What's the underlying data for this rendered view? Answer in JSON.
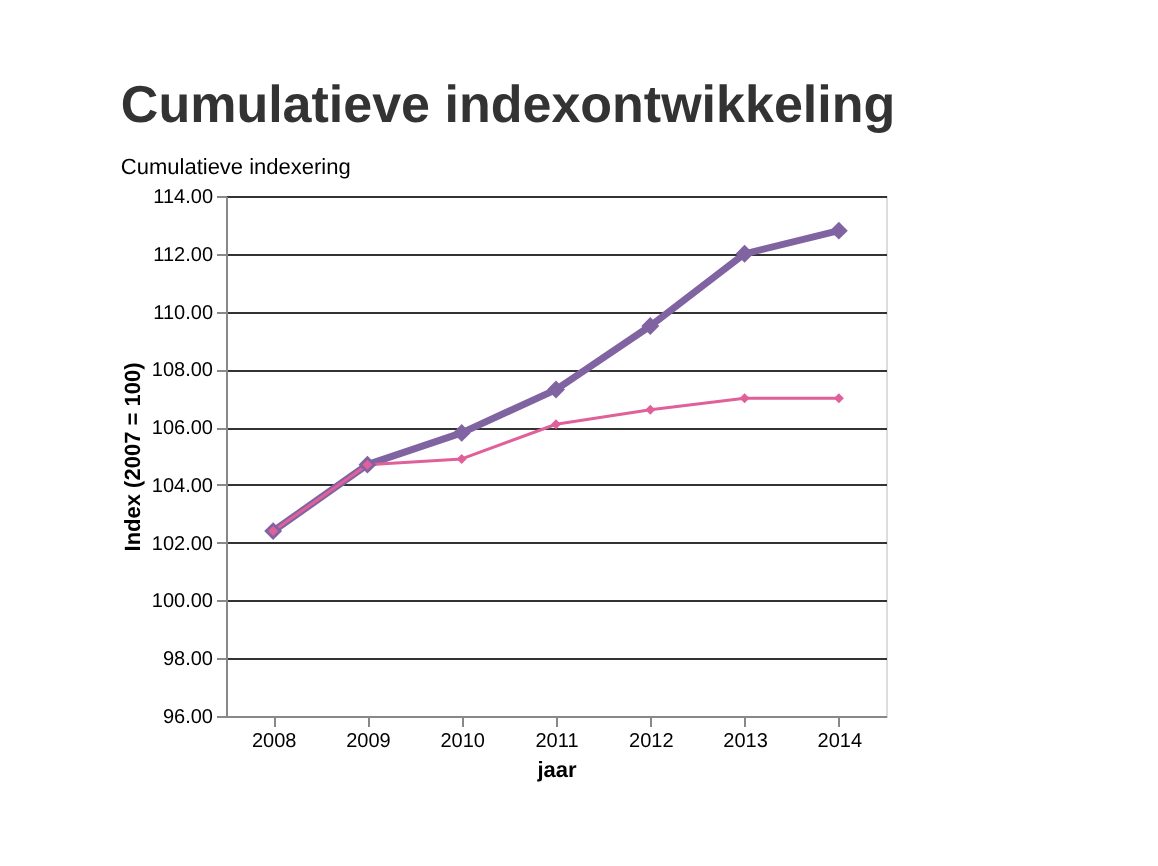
{
  "chart_data": {
    "type": "line",
    "title": "Cumulatieve indexontwikkeling",
    "subtitle": "Cumulatieve indexering",
    "xlabel": "jaar",
    "ylabel": "Index (2007 = 100)",
    "categories": [
      "2008",
      "2009",
      "2010",
      "2011",
      "2012",
      "2013",
      "2014"
    ],
    "series": [
      {
        "color": "#8064a2",
        "values": [
          102.4,
          104.7,
          105.8,
          107.3,
          109.5,
          112.0,
          112.8
        ]
      },
      {
        "color": "#e0609a",
        "values": [
          102.4,
          104.7,
          104.9,
          106.1,
          106.6,
          107.0,
          107.0
        ]
      }
    ],
    "ylim": [
      96,
      114
    ],
    "yticks": [
      {
        "value": 96,
        "label": "96.00"
      },
      {
        "value": 98,
        "label": "98.00"
      },
      {
        "value": 100,
        "label": "100.00"
      },
      {
        "value": 102,
        "label": "102.00"
      },
      {
        "value": 104,
        "label": "104.00"
      },
      {
        "value": 106,
        "label": "106.00"
      },
      {
        "value": 108,
        "label": "108.00"
      },
      {
        "value": 110,
        "label": "110.00"
      },
      {
        "value": 112,
        "label": "112.00"
      },
      {
        "value": 114,
        "label": "114.00"
      }
    ],
    "grid": "y",
    "marker": "diamond",
    "line_style": "solid"
  }
}
